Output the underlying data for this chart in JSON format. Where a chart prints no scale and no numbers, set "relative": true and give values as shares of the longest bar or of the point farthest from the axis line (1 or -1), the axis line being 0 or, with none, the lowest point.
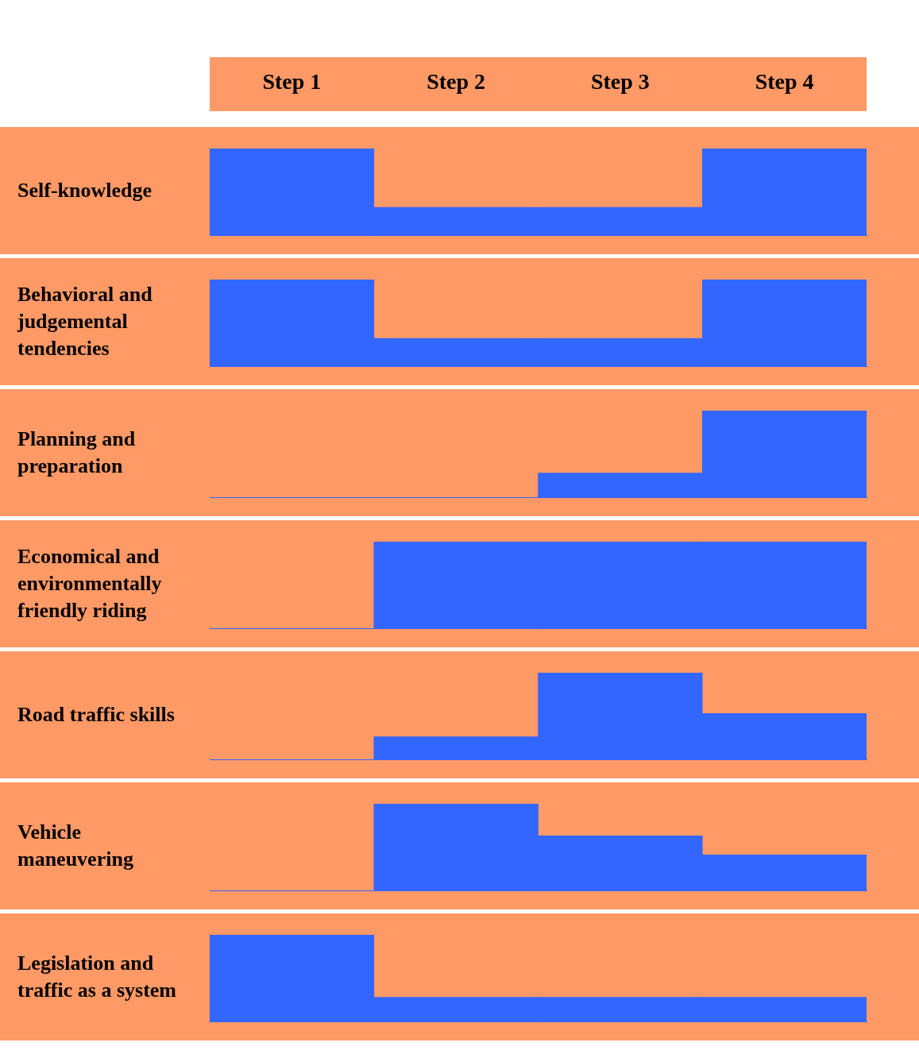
{
  "chart_data": [
    {
      "type": "bar",
      "title": "Self-knowledge",
      "relative": true,
      "categories": [
        "Step 1",
        "Step 2",
        "Step 3",
        "Step 4"
      ],
      "values": [
        1,
        0.32,
        0.32,
        1
      ],
      "color": "#3366ff",
      "grid": false,
      "legend": false
    },
    {
      "type": "bar",
      "title": "Behavioral and judgemental tendencies",
      "relative": true,
      "categories": [
        null,
        null,
        null,
        null
      ],
      "values": [
        1,
        0.32,
        0.32,
        1
      ],
      "color": "#3366ff",
      "grid": false,
      "legend": false,
      "tick_labels": false
    },
    {
      "type": "bar",
      "title": "Planning and preparation",
      "relative": true,
      "categories": [
        null,
        null,
        null,
        null
      ],
      "values": [
        null,
        null,
        0.28,
        1
      ],
      "color": "#3366ff",
      "grid": false,
      "legend": false,
      "tick_labels": false
    },
    {
      "type": "bar",
      "title": "Economical and environmentally friendly riding",
      "relative": true,
      "categories": [
        null,
        null,
        null,
        null
      ],
      "values": [
        null,
        1,
        1,
        1
      ],
      "color": "#3366ff",
      "grid": false,
      "legend": false,
      "tick_labels": false
    },
    {
      "type": "bar",
      "title": "Road traffic skills",
      "relative": true,
      "categories": [
        null,
        null,
        null,
        null
      ],
      "values": [
        null,
        0.26,
        1,
        0.53
      ],
      "color": "#3366ff",
      "grid": false,
      "legend": false,
      "tick_labels": false
    },
    {
      "type": "bar",
      "title": "Vehicle maneuvering",
      "relative": true,
      "categories": [
        null,
        null,
        null,
        null
      ],
      "values": [
        null,
        1,
        0.63,
        0.41
      ],
      "color": "#3366ff",
      "grid": false,
      "legend": false,
      "tick_labels": false
    },
    {
      "type": "bar",
      "title": "Legislation and traffic as a system",
      "relative": true,
      "categories": [
        null,
        null,
        null,
        null
      ],
      "values": [
        1,
        0.28,
        0.28,
        0.28
      ],
      "color": "#3366ff",
      "grid": false,
      "legend": false,
      "tick_labels": false
    }
  ]
}
